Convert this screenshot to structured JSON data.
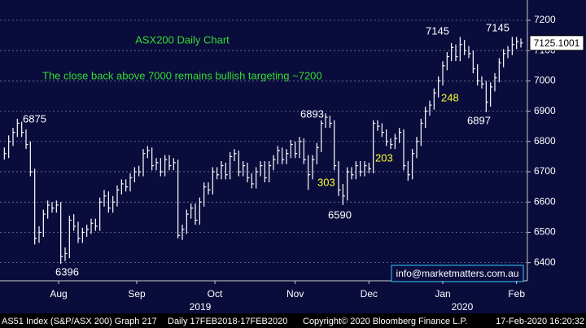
{
  "chart_data": {
    "type": "hlc",
    "title": "ASX200 Daily Chart",
    "subtitle": "The close back above 7000 remains bullish targeting ~7200",
    "x": [
      0,
      1,
      2,
      3,
      4,
      5,
      6,
      7,
      8,
      9,
      10,
      11,
      12,
      13,
      14,
      15,
      16,
      17,
      18,
      19,
      20,
      21,
      22,
      23,
      24,
      25,
      26,
      27,
      28,
      29,
      30,
      31,
      32,
      33,
      34,
      35,
      36,
      37,
      38,
      39,
      40,
      41,
      42,
      43,
      44,
      45,
      46,
      47,
      48,
      49,
      50,
      51,
      52,
      53,
      54,
      55,
      56,
      57,
      58,
      59,
      60,
      61,
      62,
      63,
      64,
      65,
      66,
      67,
      68,
      69,
      70,
      71,
      72,
      73,
      74,
      75,
      76,
      77,
      78,
      79,
      80,
      81,
      82,
      83,
      84,
      85,
      86,
      87,
      88,
      89,
      90,
      91,
      92,
      93,
      94,
      95,
      96,
      97,
      98,
      99,
      100,
      101,
      102,
      103,
      104,
      105,
      106,
      107,
      108,
      109,
      110,
      111,
      112,
      113,
      114,
      115,
      116,
      117,
      118,
      119
    ],
    "series": [
      {
        "color": "#ffffff",
        "high": [
          6780,
          6820,
          6845,
          6875,
          6865,
          6840,
          6800,
          6710,
          6520,
          6575,
          6605,
          6600,
          6605,
          6600,
          6450,
          6555,
          6560,
          6535,
          6515,
          6525,
          6545,
          6545,
          6615,
          6640,
          6635,
          6620,
          6655,
          6675,
          6675,
          6695,
          6715,
          6720,
          6775,
          6785,
          6780,
          6745,
          6745,
          6755,
          6755,
          6745,
          6740,
          6525,
          6575,
          6595,
          6595,
          6615,
          6665,
          6665,
          6715,
          6715,
          6735,
          6730,
          6765,
          6775,
          6770,
          6735,
          6730,
          6695,
          6715,
          6735,
          6735,
          6735,
          6755,
          6785,
          6780,
          6775,
          6805,
          6800,
          6815,
          6810,
          6755,
          6755,
          6795,
          6870,
          6893,
          6885,
          6870,
          6735,
          6660,
          6715,
          6715,
          6735,
          6735,
          6735,
          6730,
          6870,
          6870,
          6860,
          6840,
          6810,
          6825,
          6845,
          6840,
          6735,
          6775,
          6815,
          6875,
          6915,
          6935,
          6975,
          7015,
          7065,
          7095,
          7125,
          7120,
          7145,
          7135,
          7115,
          7100,
          7055,
          7015,
          7000,
          6995,
          7025,
          7075,
          7105,
          7115,
          7145,
          7145,
          7140
        ],
        "low": [
          6740,
          6745,
          6785,
          6815,
          6815,
          6775,
          6685,
          6460,
          6465,
          6485,
          6545,
          6565,
          6565,
          6396,
          6405,
          6415,
          6505,
          6465,
          6465,
          6485,
          6495,
          6505,
          6505,
          6585,
          6565,
          6565,
          6585,
          6625,
          6635,
          6635,
          6665,
          6685,
          6685,
          6745,
          6705,
          6705,
          6685,
          6685,
          6705,
          6705,
          6480,
          6475,
          6495,
          6545,
          6525,
          6525,
          6585,
          6625,
          6625,
          6675,
          6675,
          6675,
          6675,
          6735,
          6685,
          6685,
          6665,
          6645,
          6645,
          6685,
          6665,
          6665,
          6705,
          6725,
          6725,
          6725,
          6745,
          6745,
          6745,
          6725,
          6640,
          6675,
          6725,
          6765,
          6845,
          6845,
          6705,
          6620,
          6590,
          6605,
          6675,
          6675,
          6685,
          6685,
          6695,
          6695,
          6835,
          6815,
          6785,
          6775,
          6775,
          6795,
          6705,
          6670,
          6675,
          6745,
          6785,
          6845,
          6885,
          6905,
          6945,
          6985,
          7035,
          7065,
          7065,
          7065,
          7085,
          7075,
          7025,
          6985,
          6975,
          6897,
          6915,
          6965,
          6995,
          7045,
          7075,
          7085,
          7105,
          7110
        ],
        "close": [
          6760,
          6800,
          6830,
          6860,
          6830,
          6790,
          6700,
          6480,
          6500,
          6560,
          6590,
          6580,
          6590,
          6420,
          6430,
          6540,
          6520,
          6480,
          6500,
          6510,
          6530,
          6520,
          6600,
          6620,
          6580,
          6600,
          6640,
          6660,
          6650,
          6680,
          6700,
          6700,
          6760,
          6770,
          6720,
          6730,
          6700,
          6740,
          6720,
          6730,
          6490,
          6510,
          6560,
          6580,
          6540,
          6600,
          6650,
          6640,
          6700,
          6690,
          6720,
          6690,
          6750,
          6760,
          6700,
          6720,
          6680,
          6660,
          6700,
          6720,
          6680,
          6720,
          6740,
          6770,
          6740,
          6760,
          6790,
          6760,
          6800,
          6740,
          6690,
          6740,
          6780,
          6860,
          6880,
          6860,
          6720,
          6640,
          6620,
          6700,
          6690,
          6720,
          6700,
          6720,
          6710,
          6860,
          6850,
          6830,
          6800,
          6790,
          6810,
          6830,
          6720,
          6690,
          6760,
          6800,
          6860,
          6900,
          6920,
          6960,
          7000,
          7050,
          7080,
          7110,
          7080,
          7120,
          7100,
          7090,
          7040,
          7000,
          6990,
          6930,
          6980,
          7010,
          7060,
          7090,
          7100,
          7120,
          7130,
          7125.1001
        ]
      }
    ],
    "xlim": [
      -1,
      120.5
    ],
    "xticks": [
      {
        "value": 12.5,
        "label": "Aug"
      },
      {
        "value": 30.5,
        "label": "Sep"
      },
      {
        "value": 48.5,
        "label": "Oct"
      },
      {
        "value": 67,
        "label": "Nov"
      },
      {
        "value": 84,
        "label": "Dec"
      },
      {
        "value": 101,
        "label": "Jan"
      },
      {
        "value": 118,
        "label": "Feb"
      }
    ],
    "years": [
      "2019",
      "2020"
    ],
    "ylim": [
      6340,
      7267
    ],
    "yticks": [
      6400,
      6500,
      6600,
      6700,
      6800,
      6900,
      7000,
      7100,
      7200
    ],
    "grid": true,
    "annotations": [
      "6875",
      "6396",
      "6893",
      "303",
      "6590",
      "203",
      "7145",
      "248",
      "6897",
      "7145"
    ],
    "contact": "info@marketmatters.com.au",
    "footer": {
      "security": "AS51 Index (S&P/ASX 200) Graph 217",
      "range": "Daily 17FEB2018-17FEB2020",
      "copyright": "Copyright© 2020 Bloomberg Finance L.P.",
      "timestamp": "17-Feb-2020 16:20:32"
    }
  }
}
